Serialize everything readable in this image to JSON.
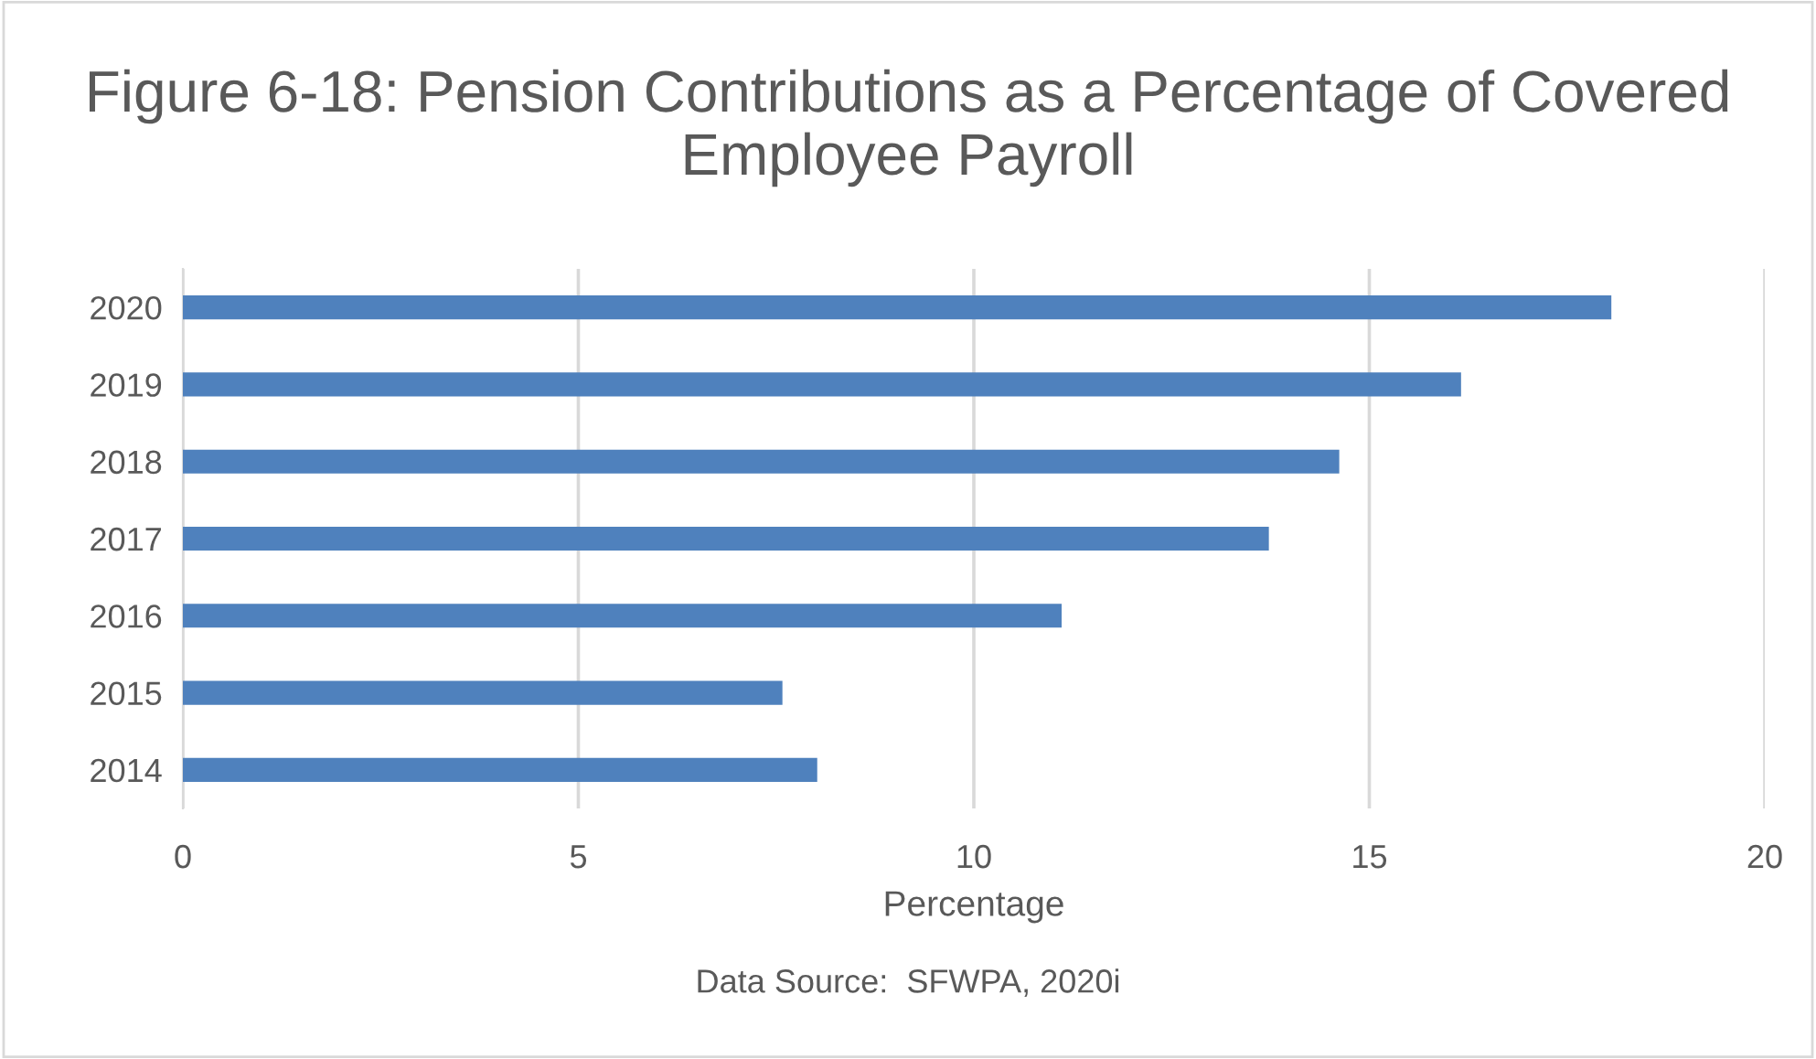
{
  "chart_data": {
    "type": "bar",
    "orientation": "horizontal",
    "title": "Figure 6-18: Pension Contributions as a Percentage of Covered Employee Payroll",
    "xlabel": "Percentage",
    "annotations": [
      "Data Source:  SFWPA, 2020i"
    ],
    "categories": [
      "2020",
      "2019",
      "2018",
      "2017",
      "2016",
      "2015",
      "2014"
    ],
    "values": [
      18.06,
      16.16,
      14.62,
      13.73,
      11.11,
      7.58,
      8.02
    ],
    "color": "#4f81bd",
    "xlim": [
      0,
      20
    ],
    "xticks": [
      0,
      5,
      10,
      15,
      20
    ],
    "grid": "x",
    "legend": false
  }
}
